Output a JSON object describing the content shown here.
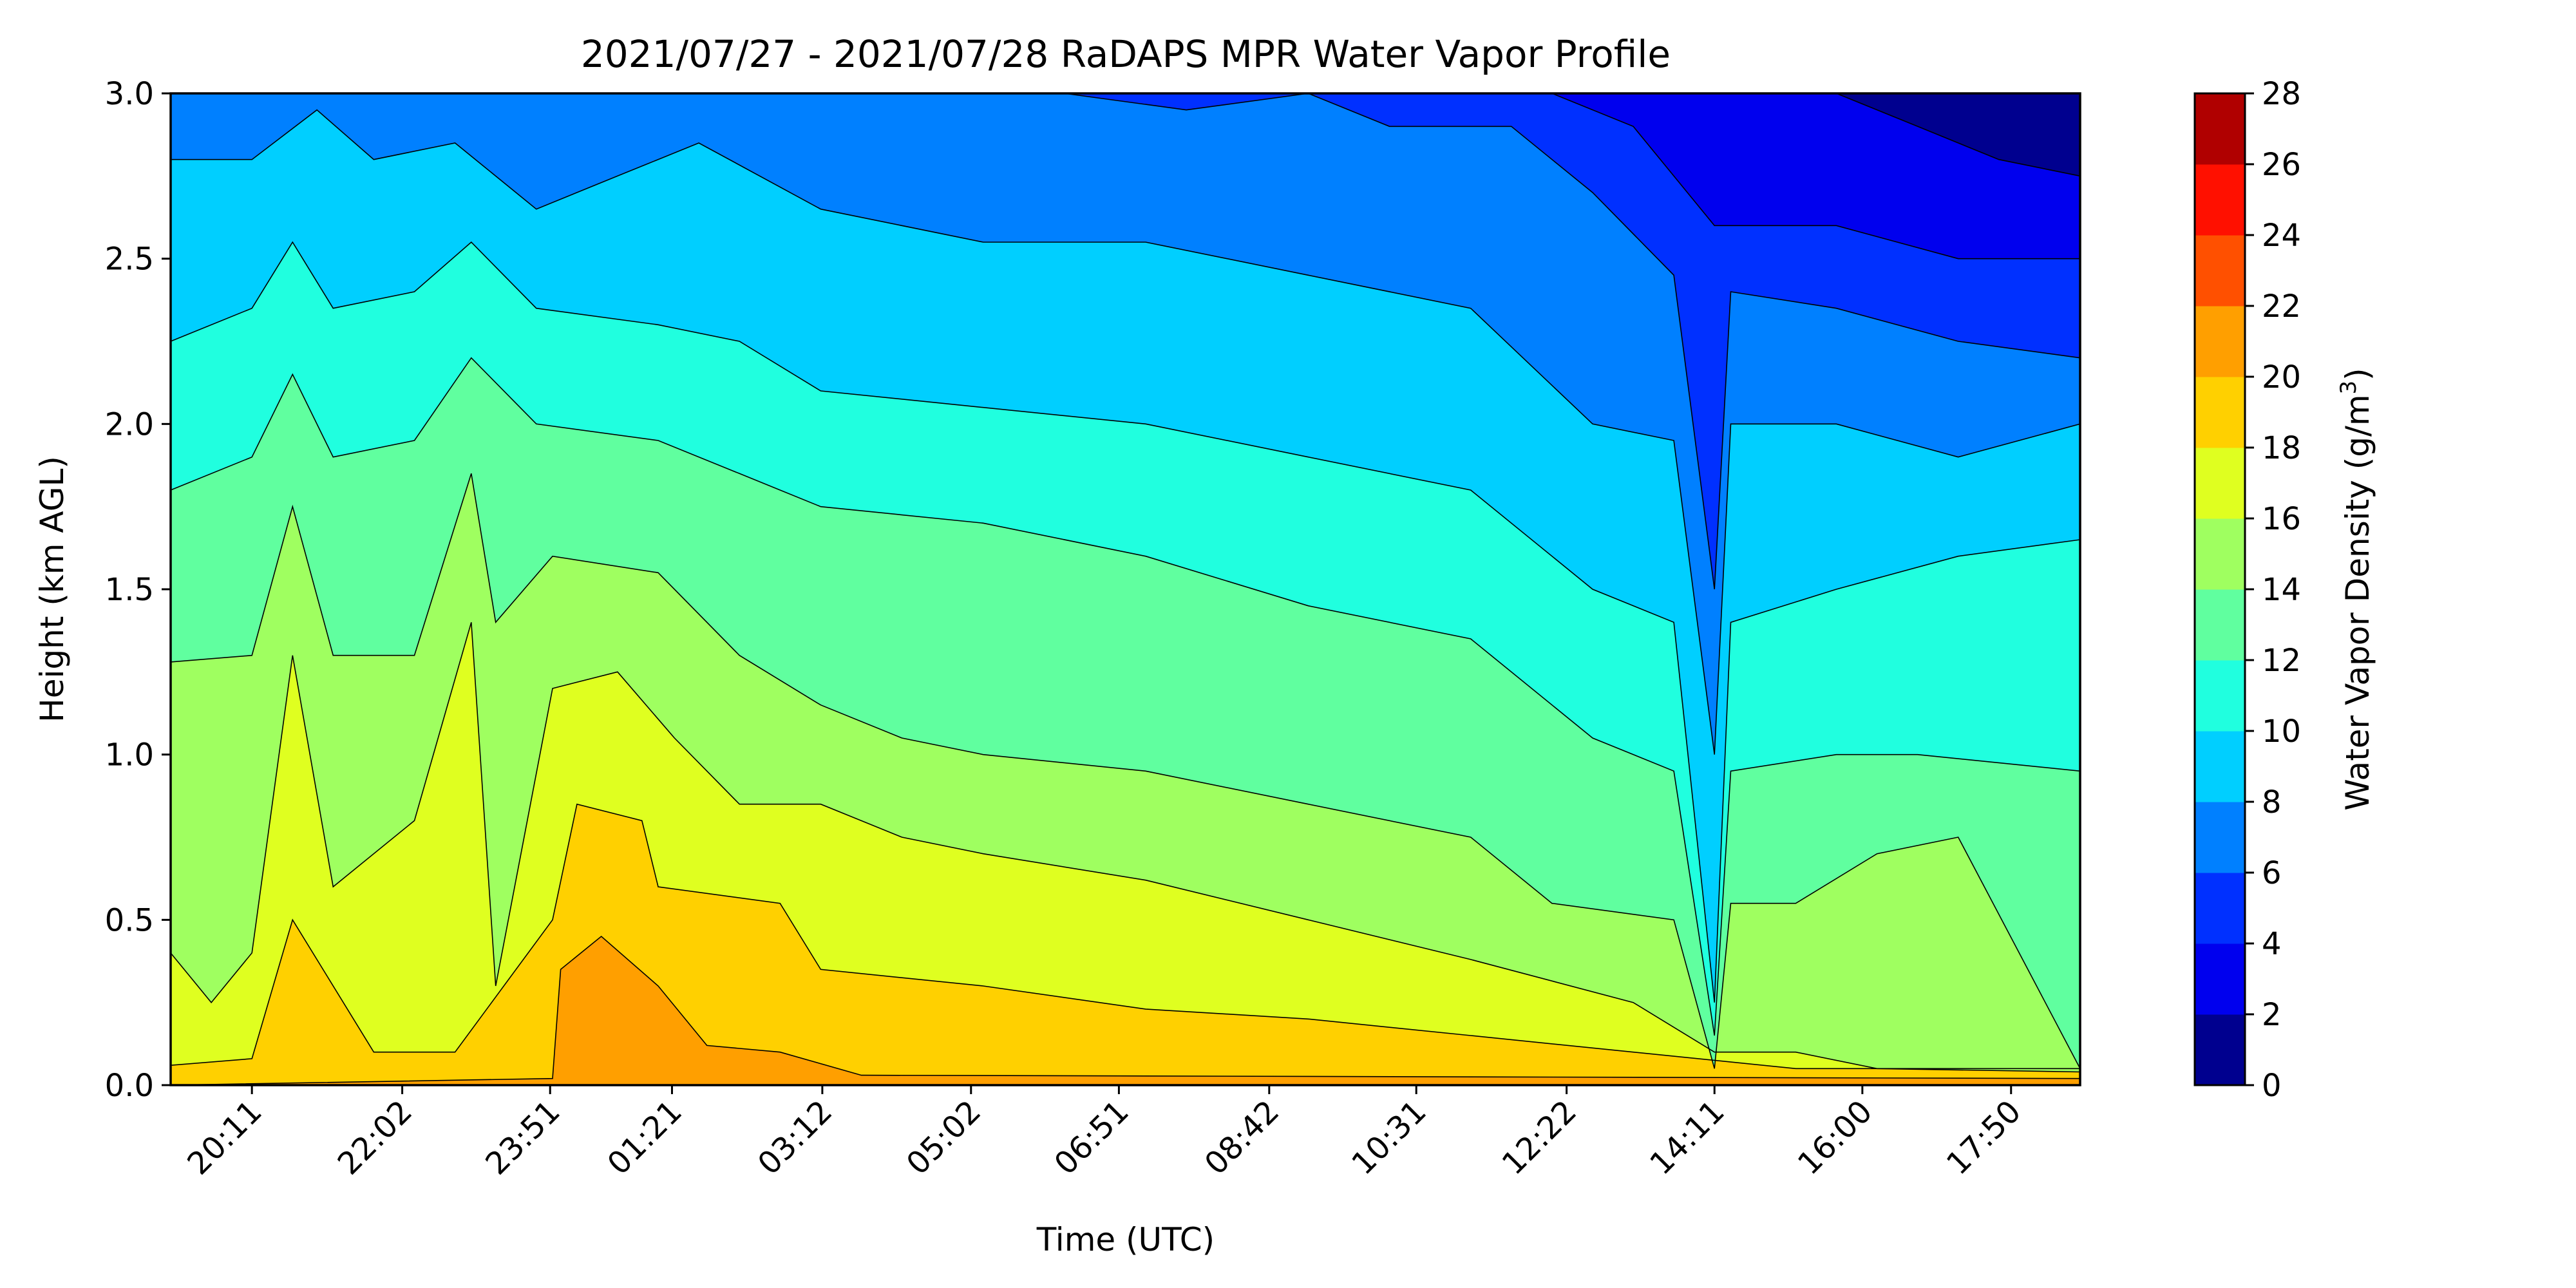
{
  "chart_data": {
    "type": "heatmap",
    "title": "2021/07/27 - 2021/07/28 RaDAPS MPR Water Vapor Profile",
    "xlabel": "Time (UTC)",
    "ylabel": "Height (km AGL)",
    "colorbar_label": "Water Vapor Density (g/m",
    "colorbar_label_superscript": "3",
    "colorbar_label_end": ")",
    "x_ticks": [
      "20:11",
      "22:02",
      "23:51",
      "01:21",
      "03:12",
      "05:02",
      "06:51",
      "08:42",
      "10:31",
      "12:22",
      "14:11",
      "16:00",
      "17:50"
    ],
    "x_tick_positions_hours": [
      1.0,
      2.85,
      4.67,
      6.17,
      8.02,
      9.85,
      11.67,
      13.52,
      15.33,
      17.18,
      19.0,
      20.82,
      22.65
    ],
    "x_range_hours": [
      0,
      23.5
    ],
    "y_ticks": [
      "0.0",
      "0.5",
      "1.0",
      "1.5",
      "2.0",
      "2.5",
      "3.0"
    ],
    "ylim": [
      0,
      3
    ],
    "levels": [
      0,
      2,
      4,
      6,
      8,
      10,
      12,
      14,
      16,
      18,
      20,
      22,
      24,
      26,
      28
    ],
    "level_labels": [
      "0",
      "2",
      "4",
      "6",
      "8",
      "10",
      "12",
      "14",
      "16",
      "18",
      "20",
      "22",
      "24",
      "26",
      "28"
    ],
    "colors": [
      "#00008f",
      "#0000ee",
      "#0030ff",
      "#0080ff",
      "#00cfff",
      "#20ffdf",
      "#60ff9f",
      "#9fff60",
      "#dfff20",
      "#ffd000",
      "#ff9f00",
      "#ff5000",
      "#ff1000",
      "#b00000"
    ],
    "contour_boundaries_km": [
      {
        "level": 20,
        "points": [
          [
            0,
            0.0
          ],
          [
            4.7,
            0.02
          ],
          [
            4.8,
            0.35
          ],
          [
            5.3,
            0.45
          ],
          [
            6.0,
            0.3
          ],
          [
            6.6,
            0.12
          ],
          [
            7.5,
            0.1
          ],
          [
            8.5,
            0.03
          ],
          [
            23.5,
            0.02
          ]
        ]
      },
      {
        "level": 18,
        "points": [
          [
            0,
            0.06
          ],
          [
            1.0,
            0.08
          ],
          [
            1.5,
            0.5
          ],
          [
            2.5,
            0.1
          ],
          [
            3.5,
            0.1
          ],
          [
            4.7,
            0.5
          ],
          [
            5.0,
            0.85
          ],
          [
            5.8,
            0.8
          ],
          [
            6.0,
            0.6
          ],
          [
            7.5,
            0.55
          ],
          [
            8.0,
            0.35
          ],
          [
            10.0,
            0.3
          ],
          [
            12.0,
            0.23
          ],
          [
            14.0,
            0.2
          ],
          [
            16.0,
            0.15
          ],
          [
            18.0,
            0.1
          ],
          [
            20.0,
            0.05
          ],
          [
            23.5,
            0.05
          ]
        ]
      },
      {
        "level": 16,
        "points": [
          [
            0,
            0.4
          ],
          [
            0.5,
            0.25
          ],
          [
            1.0,
            0.4
          ],
          [
            1.5,
            1.3
          ],
          [
            2.0,
            0.6
          ],
          [
            3.0,
            0.8
          ],
          [
            3.7,
            1.4
          ],
          [
            4.0,
            0.3
          ],
          [
            4.7,
            1.2
          ],
          [
            5.5,
            1.25
          ],
          [
            6.2,
            1.05
          ],
          [
            7.0,
            0.85
          ],
          [
            8.0,
            0.85
          ],
          [
            9.0,
            0.75
          ],
          [
            10.0,
            0.7
          ],
          [
            12.0,
            0.62
          ],
          [
            14.0,
            0.5
          ],
          [
            16.0,
            0.38
          ],
          [
            18.0,
            0.25
          ],
          [
            19.0,
            0.1
          ],
          [
            20.0,
            0.1
          ],
          [
            21.0,
            0.05
          ],
          [
            23.5,
            0.04
          ]
        ]
      },
      {
        "level": 14,
        "points": [
          [
            0,
            1.28
          ],
          [
            1.0,
            1.3
          ],
          [
            1.5,
            1.75
          ],
          [
            2.0,
            1.3
          ],
          [
            3.0,
            1.3
          ],
          [
            3.7,
            1.85
          ],
          [
            4.0,
            1.4
          ],
          [
            4.7,
            1.6
          ],
          [
            6.0,
            1.55
          ],
          [
            7.0,
            1.3
          ],
          [
            8.0,
            1.15
          ],
          [
            9.0,
            1.05
          ],
          [
            10.0,
            1.0
          ],
          [
            12.0,
            0.95
          ],
          [
            14.0,
            0.85
          ],
          [
            16.0,
            0.75
          ],
          [
            17.0,
            0.55
          ],
          [
            18.5,
            0.5
          ],
          [
            19.0,
            0.05
          ],
          [
            19.2,
            0.55
          ],
          [
            20.0,
            0.55
          ],
          [
            21.0,
            0.7
          ],
          [
            22.0,
            0.75
          ],
          [
            23.5,
            0.05
          ]
        ]
      },
      {
        "level": 12,
        "points": [
          [
            0,
            1.8
          ],
          [
            1.0,
            1.9
          ],
          [
            1.5,
            2.15
          ],
          [
            2.0,
            1.9
          ],
          [
            3.0,
            1.95
          ],
          [
            3.7,
            2.2
          ],
          [
            4.5,
            2.0
          ],
          [
            6.0,
            1.95
          ],
          [
            7.0,
            1.85
          ],
          [
            8.0,
            1.75
          ],
          [
            10.0,
            1.7
          ],
          [
            12.0,
            1.6
          ],
          [
            14.0,
            1.45
          ],
          [
            16.0,
            1.35
          ],
          [
            17.5,
            1.05
          ],
          [
            18.5,
            0.95
          ],
          [
            19.0,
            0.15
          ],
          [
            19.2,
            0.95
          ],
          [
            20.5,
            1.0
          ],
          [
            21.5,
            1.0
          ],
          [
            23.5,
            0.95
          ]
        ]
      },
      {
        "level": 10,
        "points": [
          [
            0,
            2.25
          ],
          [
            1.0,
            2.35
          ],
          [
            1.5,
            2.55
          ],
          [
            2.0,
            2.35
          ],
          [
            3.0,
            2.4
          ],
          [
            3.7,
            2.55
          ],
          [
            4.5,
            2.35
          ],
          [
            6.0,
            2.3
          ],
          [
            7.0,
            2.25
          ],
          [
            8.0,
            2.1
          ],
          [
            10.0,
            2.05
          ],
          [
            12.0,
            2.0
          ],
          [
            14.0,
            1.9
          ],
          [
            16.0,
            1.8
          ],
          [
            17.5,
            1.5
          ],
          [
            18.5,
            1.4
          ],
          [
            19.0,
            0.25
          ],
          [
            19.2,
            1.4
          ],
          [
            20.5,
            1.5
          ],
          [
            22.0,
            1.6
          ],
          [
            23.5,
            1.65
          ]
        ]
      },
      {
        "level": 8,
        "points": [
          [
            0,
            2.8
          ],
          [
            1.0,
            2.8
          ],
          [
            1.8,
            2.95
          ],
          [
            2.5,
            2.8
          ],
          [
            3.5,
            2.85
          ],
          [
            4.5,
            2.65
          ],
          [
            5.5,
            2.75
          ],
          [
            6.5,
            2.85
          ],
          [
            8.0,
            2.65
          ],
          [
            10.0,
            2.55
          ],
          [
            12.0,
            2.55
          ],
          [
            14.0,
            2.45
          ],
          [
            16.0,
            2.35
          ],
          [
            17.5,
            2.0
          ],
          [
            18.5,
            1.95
          ],
          [
            19.0,
            1.0
          ],
          [
            19.2,
            2.0
          ],
          [
            20.5,
            2.0
          ],
          [
            22.0,
            1.9
          ],
          [
            23.5,
            2.0
          ]
        ]
      },
      {
        "level": 6,
        "points": [
          [
            0,
            3.0
          ],
          [
            5.0,
            3.0
          ],
          [
            6.0,
            3.0
          ],
          [
            9.0,
            3.0
          ],
          [
            11.0,
            3.0
          ],
          [
            12.5,
            2.95
          ],
          [
            14.0,
            3.0
          ],
          [
            15.0,
            2.9
          ],
          [
            16.5,
            2.9
          ],
          [
            17.5,
            2.7
          ],
          [
            18.5,
            2.45
          ],
          [
            19.0,
            1.5
          ],
          [
            19.2,
            2.4
          ],
          [
            20.5,
            2.35
          ],
          [
            22.0,
            2.25
          ],
          [
            23.5,
            2.2
          ]
        ]
      },
      {
        "level": 4,
        "points": [
          [
            0,
            3.0
          ],
          [
            11.0,
            3.0
          ],
          [
            12.5,
            3.0
          ],
          [
            17.0,
            3.0
          ],
          [
            18.0,
            2.9
          ],
          [
            19.0,
            2.6
          ],
          [
            20.5,
            2.6
          ],
          [
            22.0,
            2.5
          ],
          [
            23.5,
            2.5
          ]
        ]
      },
      {
        "level": 2,
        "points": [
          [
            0,
            3.0
          ],
          [
            19.5,
            3.0
          ],
          [
            20.5,
            3.0
          ],
          [
            21.5,
            2.9
          ],
          [
            22.5,
            2.8
          ],
          [
            23.5,
            2.75
          ]
        ]
      }
    ]
  }
}
